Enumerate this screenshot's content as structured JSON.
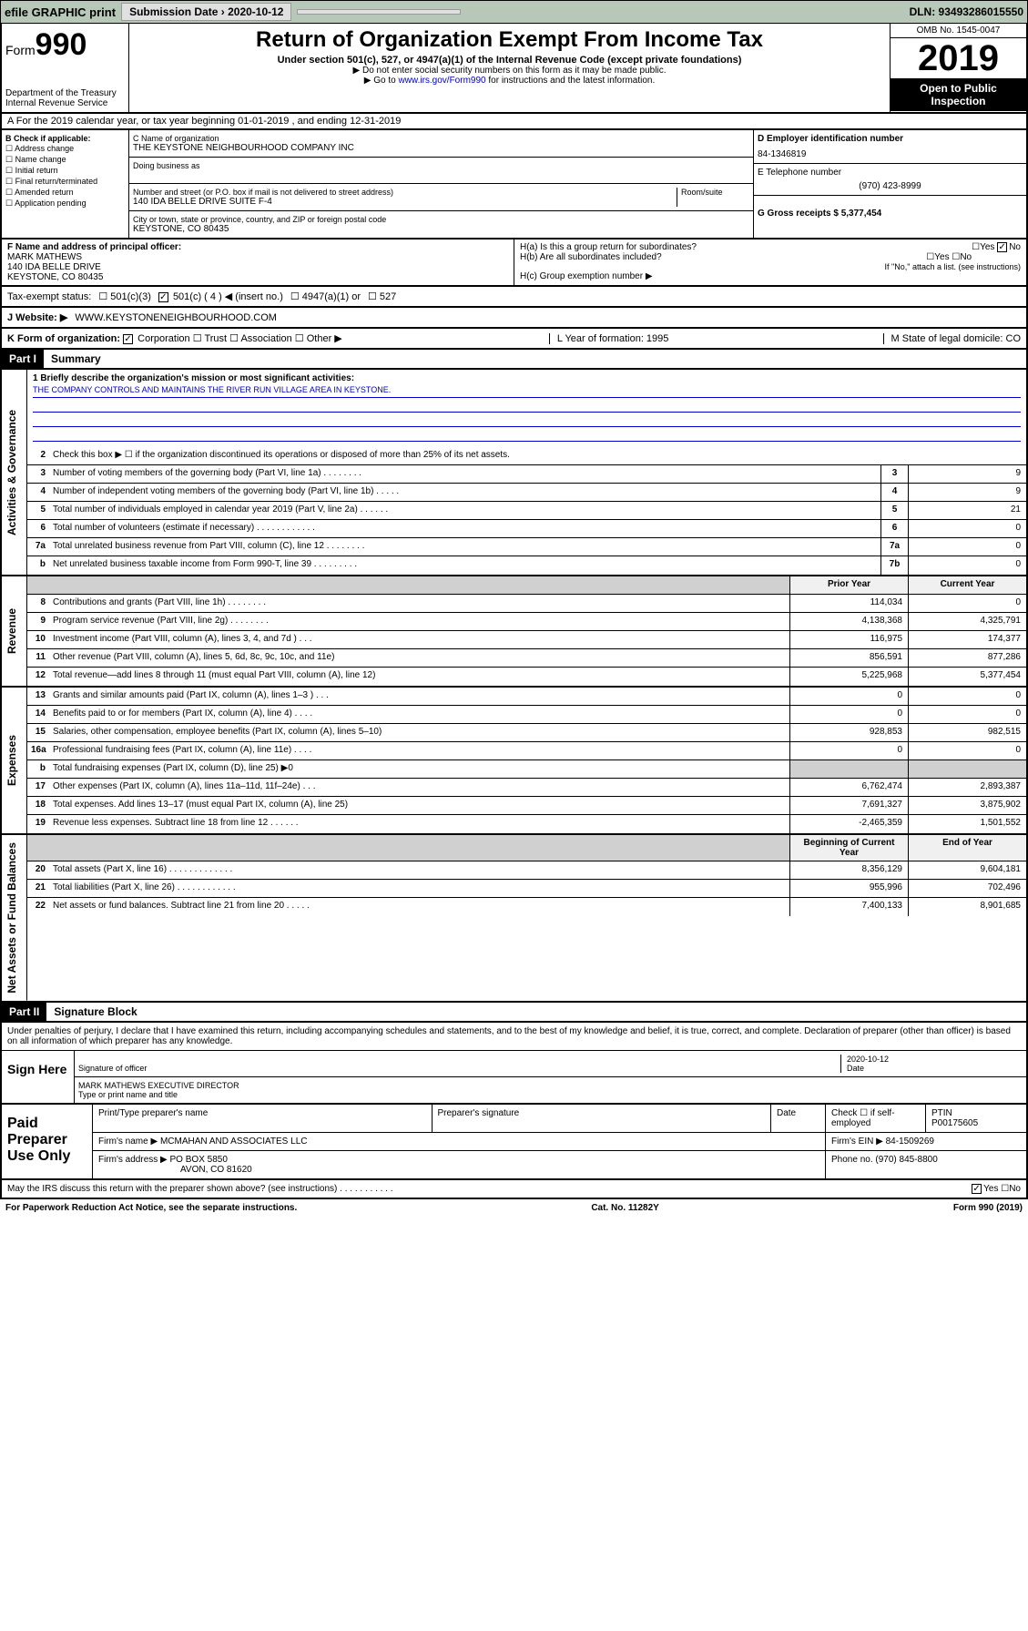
{
  "topbar": {
    "efile": "efile GRAPHIC print",
    "submission_label": "Submission Date › 2020-10-12",
    "dln": "DLN: 93493286015550"
  },
  "header": {
    "form_prefix": "Form",
    "form_num": "990",
    "dept": "Department of the Treasury Internal Revenue Service",
    "title": "Return of Organization Exempt From Income Tax",
    "sub1": "Under section 501(c), 527, or 4947(a)(1) of the Internal Revenue Code (except private foundations)",
    "sub2": "▶ Do not enter social security numbers on this form as it may be made public.",
    "sub3_pre": "▶ Go to ",
    "sub3_link": "www.irs.gov/Form990",
    "sub3_post": " for instructions and the latest information.",
    "omb": "OMB No. 1545-0047",
    "year": "2019",
    "inspection": "Open to Public Inspection"
  },
  "line_a": "A For the 2019 calendar year, or tax year beginning 01-01-2019    , and ending 12-31-2019",
  "col_b": {
    "header": "B Check if applicable:",
    "items": [
      "Address change",
      "Name change",
      "Initial return",
      "Final return/terminated",
      "Amended return",
      "Application pending"
    ]
  },
  "col_c": {
    "name_label": "C Name of organization",
    "name": "THE KEYSTONE NEIGHBOURHOOD COMPANY INC",
    "dba_label": "Doing business as",
    "addr_label": "Number and street (or P.O. box if mail is not delivered to street address)",
    "room_label": "Room/suite",
    "addr": "140 IDA BELLE DRIVE SUITE F-4",
    "city_label": "City or town, state or province, country, and ZIP or foreign postal code",
    "city": "KEYSTONE, CO  80435"
  },
  "col_d": {
    "ein_label": "D Employer identification number",
    "ein": "84-1346819",
    "phone_label": "E Telephone number",
    "phone": "(970) 423-8999",
    "gross_label": "G Gross receipts $ 5,377,454"
  },
  "officer": {
    "label": "F  Name and address of principal officer:",
    "name": "MARK MATHEWS",
    "addr1": "140 IDA BELLE DRIVE",
    "addr2": "KEYSTONE, CO  80435"
  },
  "h": {
    "ha": "H(a)  Is this a group return for subordinates?",
    "hb": "H(b)  Are all subordinates included?",
    "hb_note": "If \"No,\" attach a list. (see instructions)",
    "hc": "H(c)  Group exemption number ▶",
    "yes": "Yes",
    "no": "No"
  },
  "tax_status": {
    "label": "Tax-exempt status:",
    "opt1": "501(c)(3)",
    "opt2": "501(c) ( 4 ) ◀ (insert no.)",
    "opt3": "4947(a)(1) or",
    "opt4": "527"
  },
  "website": {
    "label": "J   Website: ▶",
    "value": "WWW.KEYSTONENEIGHBOURHOOD.COM"
  },
  "k_org": {
    "label": "K Form of organization:",
    "opts": [
      "Corporation",
      "Trust",
      "Association",
      "Other ▶"
    ],
    "l": "L Year of formation: 1995",
    "m": "M State of legal domicile: CO"
  },
  "part1": {
    "header": "Part I",
    "title": "Summary"
  },
  "summary": {
    "gov_label": "Activities & Governance",
    "rev_label": "Revenue",
    "exp_label": "Expenses",
    "net_label": "Net Assets or Fund Balances",
    "line1": "1  Briefly describe the organization's mission or most significant activities:",
    "mission": "THE COMPANY CONTROLS AND MAINTAINS THE RIVER RUN VILLAGE AREA IN KEYSTONE.",
    "line2": "Check this box ▶ ☐  if the organization discontinued its operations or disposed of more than 25% of its net assets.",
    "lines": [
      {
        "n": "3",
        "d": "Number of voting members of the governing body (Part VI, line 1a)  .   .   .   .   .   .   .   .",
        "b": "3",
        "v": "9"
      },
      {
        "n": "4",
        "d": "Number of independent voting members of the governing body (Part VI, line 1b)  .   .   .   .   .",
        "b": "4",
        "v": "9"
      },
      {
        "n": "5",
        "d": "Total number of individuals employed in calendar year 2019 (Part V, line 2a)  .   .   .   .   .   .",
        "b": "5",
        "v": "21"
      },
      {
        "n": "6",
        "d": "Total number of volunteers (estimate if necessary)  .   .   .   .   .   .   .   .   .   .   .   .",
        "b": "6",
        "v": "0"
      },
      {
        "n": "7a",
        "d": "Total unrelated business revenue from Part VIII, column (C), line 12  .   .   .   .   .   .   .   .",
        "b": "7a",
        "v": "0"
      },
      {
        "n": "b",
        "d": "Net unrelated business taxable income from Form 990-T, line 39  .   .   .   .   .   .   .   .   .",
        "b": "7b",
        "v": "0"
      }
    ],
    "col_prior": "Prior Year",
    "col_current": "Current Year",
    "rev_lines": [
      {
        "n": "8",
        "d": "Contributions and grants (Part VIII, line 1h)  .   .   .   .   .   .   .   .",
        "p": "114,034",
        "c": "0"
      },
      {
        "n": "9",
        "d": "Program service revenue (Part VIII, line 2g)  .   .   .   .   .   .   .   .",
        "p": "4,138,368",
        "c": "4,325,791"
      },
      {
        "n": "10",
        "d": "Investment income (Part VIII, column (A), lines 3, 4, and 7d )  .   .   .",
        "p": "116,975",
        "c": "174,377"
      },
      {
        "n": "11",
        "d": "Other revenue (Part VIII, column (A), lines 5, 6d, 8c, 9c, 10c, and 11e)",
        "p": "856,591",
        "c": "877,286"
      },
      {
        "n": "12",
        "d": "Total revenue—add lines 8 through 11 (must equal Part VIII, column (A), line 12)",
        "p": "5,225,968",
        "c": "5,377,454"
      }
    ],
    "exp_lines": [
      {
        "n": "13",
        "d": "Grants and similar amounts paid (Part IX, column (A), lines 1–3 )  .   .   .",
        "p": "0",
        "c": "0"
      },
      {
        "n": "14",
        "d": "Benefits paid to or for members (Part IX, column (A), line 4)  .   .   .   .",
        "p": "0",
        "c": "0"
      },
      {
        "n": "15",
        "d": "Salaries, other compensation, employee benefits (Part IX, column (A), lines 5–10)",
        "p": "928,853",
        "c": "982,515"
      },
      {
        "n": "16a",
        "d": "Professional fundraising fees (Part IX, column (A), line 11e)  .   .   .   .",
        "p": "0",
        "c": "0"
      },
      {
        "n": "b",
        "d": "Total fundraising expenses (Part IX, column (D), line 25) ▶0",
        "p": "",
        "c": "",
        "shaded": true
      },
      {
        "n": "17",
        "d": "Other expenses (Part IX, column (A), lines 11a–11d, 11f–24e)  .   .   .",
        "p": "6,762,474",
        "c": "2,893,387"
      },
      {
        "n": "18",
        "d": "Total expenses. Add lines 13–17 (must equal Part IX, column (A), line 25)",
        "p": "7,691,327",
        "c": "3,875,902"
      },
      {
        "n": "19",
        "d": "Revenue less expenses. Subtract line 18 from line 12  .   .   .   .   .   .",
        "p": "-2,465,359",
        "c": "1,501,552"
      }
    ],
    "col_begin": "Beginning of Current Year",
    "col_end": "End of Year",
    "net_lines": [
      {
        "n": "20",
        "d": "Total assets (Part X, line 16)  .   .   .   .   .   .   .   .   .   .   .   .   .",
        "p": "8,356,129",
        "c": "9,604,181"
      },
      {
        "n": "21",
        "d": "Total liabilities (Part X, line 26)  .   .   .   .   .   .   .   .   .   .   .   .",
        "p": "955,996",
        "c": "702,496"
      },
      {
        "n": "22",
        "d": "Net assets or fund balances. Subtract line 21 from line 20  .   .   .   .   .",
        "p": "7,400,133",
        "c": "8,901,685"
      }
    ]
  },
  "part2": {
    "header": "Part II",
    "title": "Signature Block"
  },
  "sig": {
    "text": "Under penalties of perjury, I declare that I have examined this return, including accompanying schedules and statements, and to the best of my knowledge and belief, it is true, correct, and complete. Declaration of preparer (other than officer) is based on all information of which preparer has any knowledge.",
    "sign_here": "Sign Here",
    "sig_officer": "Signature of officer",
    "date": "2020-10-12",
    "date_label": "Date",
    "name_title": "MARK MATHEWS  EXECUTIVE DIRECTOR",
    "name_title_label": "Type or print name and title"
  },
  "paid": {
    "label": "Paid Preparer Use Only",
    "h1": "Print/Type preparer's name",
    "h2": "Preparer's signature",
    "h3": "Date",
    "h4_pre": "Check ☐ if self-employed",
    "h5": "PTIN",
    "ptin": "P00175605",
    "firm_label": "Firm's name      ▶",
    "firm": "MCMAHAN AND ASSOCIATES LLC",
    "ein_label": "Firm's EIN ▶",
    "ein": "84-1509269",
    "addr_label": "Firm's address ▶",
    "addr1": "PO BOX 5850",
    "addr2": "AVON, CO  81620",
    "phone_label": "Phone no.",
    "phone": "(970) 845-8800"
  },
  "discuss": {
    "text": "May the IRS discuss this return with the preparer shown above? (see instructions)   .   .   .   .   .   .   .   .   .   .   .",
    "yes": "Yes",
    "no": "No"
  },
  "footer": {
    "left": "For Paperwork Reduction Act Notice, see the separate instructions.",
    "mid": "Cat. No. 11282Y",
    "right": "Form 990 (2019)"
  }
}
